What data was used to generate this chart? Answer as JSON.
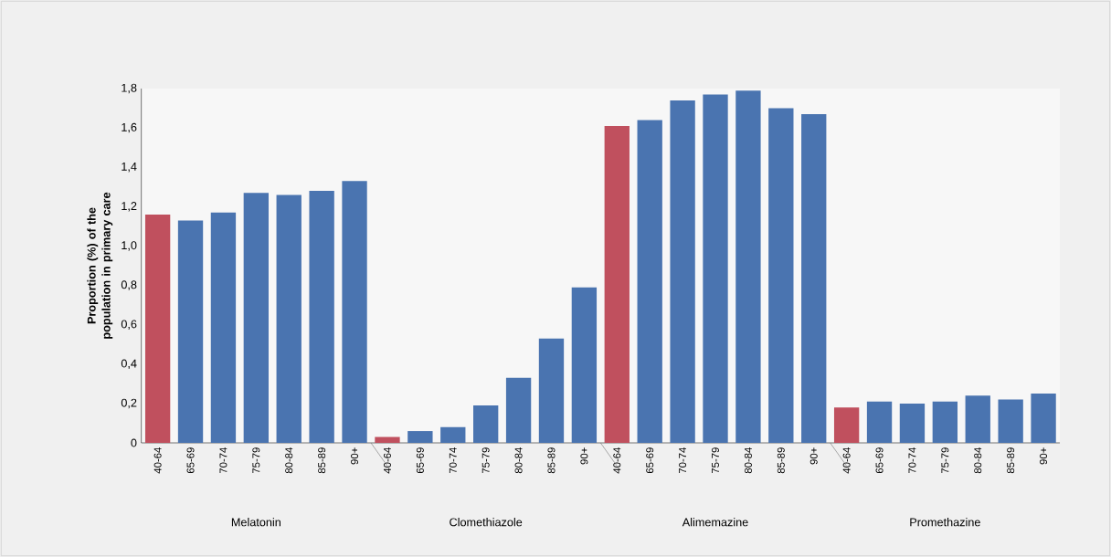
{
  "chart_data": {
    "type": "bar",
    "ylabel": "Proportion (%) of the population in primary care",
    "categories": [
      "40-64",
      "65-69",
      "70-74",
      "75-79",
      "80-84",
      "85-89",
      "90+",
      "40-64",
      "65-69",
      "70-74",
      "75-79",
      "80-84",
      "85-89",
      "90+",
      "40-64",
      "65-69",
      "70-74",
      "75-79",
      "80-84",
      "85-89",
      "90+",
      "40-64",
      "65-69",
      "70-74",
      "75-79",
      "80-84",
      "85-89",
      "90+"
    ],
    "values": [
      1.16,
      1.13,
      1.17,
      1.27,
      1.26,
      1.28,
      1.33,
      0.03,
      0.06,
      0.08,
      0.19,
      0.33,
      0.53,
      0.79,
      1.61,
      1.64,
      1.74,
      1.77,
      1.79,
      1.7,
      1.67,
      0.18,
      0.21,
      0.2,
      0.21,
      0.24,
      0.22,
      0.25
    ],
    "colors": [
      "#c0505e",
      "#4a74b0",
      "#4a74b0",
      "#4a74b0",
      "#4a74b0",
      "#4a74b0",
      "#4a74b0",
      "#c0505e",
      "#4a74b0",
      "#4a74b0",
      "#4a74b0",
      "#4a74b0",
      "#4a74b0",
      "#4a74b0",
      "#c0505e",
      "#4a74b0",
      "#4a74b0",
      "#4a74b0",
      "#4a74b0",
      "#4a74b0",
      "#4a74b0",
      "#c0505e",
      "#4a74b0",
      "#4a74b0",
      "#4a74b0",
      "#4a74b0",
      "#4a74b0",
      "#4a74b0"
    ],
    "ylim": [
      0,
      1.8
    ],
    "yticks": [
      0,
      {
        "value": 0.2,
        "label": "0,2"
      },
      {
        "value": 0.4,
        "label": "0,4"
      },
      {
        "value": 0.6,
        "label": "0,6"
      },
      {
        "value": 0.8,
        "label": "0,8"
      },
      {
        "value": 1.0,
        "label": "1,0"
      },
      {
        "value": 1.2,
        "label": "1,2"
      },
      {
        "value": 1.4,
        "label": "1,4"
      },
      {
        "value": 1.6,
        "label": "1,6"
      },
      {
        "value": 1.8,
        "label": "1,8"
      }
    ],
    "annotations": [
      "Melatonin",
      "Clomethiazole",
      "Alimemazine",
      "Promethazine"
    ]
  }
}
